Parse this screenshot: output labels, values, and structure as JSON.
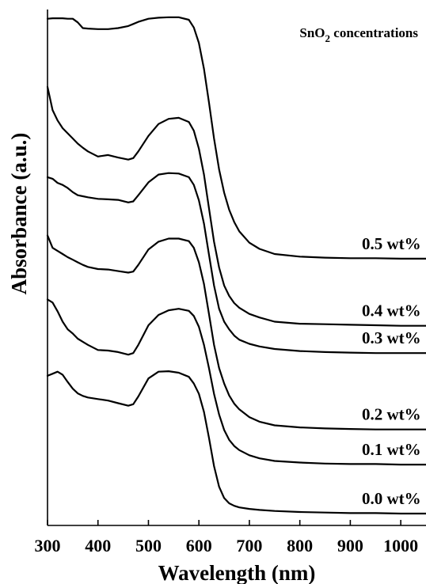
{
  "chart_data": {
    "type": "line",
    "title": "",
    "legend_title": {
      "prefix": "SnO",
      "subscript": "2",
      "suffix": " concentrations"
    },
    "legend_placement": "top-right",
    "xlabel": "Wavelength (nm)",
    "ylabel": "Absorbance (a.u.)",
    "xlim": [
      300,
      1050
    ],
    "ylim": [
      0,
      100
    ],
    "grid": false,
    "line_color": "#000000",
    "x_ticks": [
      300,
      400,
      500,
      600,
      700,
      800,
      900,
      1000
    ],
    "x_tick_labels": [
      "300",
      "400",
      "500",
      "600",
      "700",
      "800",
      "900",
      "1000"
    ],
    "y_ticks_visible": false,
    "x": [
      300,
      310,
      320,
      330,
      340,
      350,
      360,
      370,
      380,
      400,
      420,
      440,
      460,
      470,
      480,
      500,
      520,
      540,
      560,
      580,
      590,
      600,
      610,
      620,
      630,
      640,
      650,
      660,
      670,
      680,
      700,
      720,
      750,
      800,
      850,
      900,
      950,
      1000,
      1050
    ],
    "series": [
      {
        "name": "0.5 wt%",
        "values": [
          98.2,
          98.3,
          98.3,
          98.3,
          98.2,
          98.2,
          97.5,
          96.4,
          96.3,
          96.2,
          96.2,
          96.4,
          96.8,
          97.2,
          97.6,
          98.2,
          98.4,
          98.5,
          98.5,
          98.0,
          96.5,
          93.5,
          88.5,
          82.0,
          75.0,
          69.0,
          64.5,
          61.2,
          58.8,
          57.0,
          54.8,
          53.6,
          52.6,
          52.1,
          51.9,
          51.8,
          51.8,
          51.7,
          51.7
        ]
      },
      {
        "name": "0.4 wt%",
        "values": [
          85.0,
          80.5,
          78.5,
          77.0,
          76.0,
          75.0,
          74.0,
          73.2,
          72.5,
          71.5,
          71.8,
          71.3,
          70.9,
          71.2,
          72.5,
          75.5,
          77.8,
          78.8,
          79.0,
          78.2,
          76.5,
          73.0,
          68.0,
          61.5,
          55.0,
          50.0,
          46.5,
          44.5,
          43.1,
          42.2,
          41.0,
          40.3,
          39.5,
          39.1,
          39.0,
          38.9,
          38.8,
          38.7,
          38.7
        ]
      },
      {
        "name": "0.3 wt%",
        "values": [
          67.5,
          67.2,
          66.4,
          66.0,
          65.4,
          64.6,
          64.0,
          63.8,
          63.6,
          63.3,
          63.2,
          63.1,
          62.6,
          62.8,
          64.0,
          66.5,
          68.0,
          68.3,
          68.2,
          67.5,
          66.0,
          63.0,
          58.5,
          52.5,
          46.5,
          42.0,
          39.5,
          38.0,
          36.8,
          36.0,
          35.2,
          34.7,
          34.2,
          33.8,
          33.6,
          33.5,
          33.4,
          33.4,
          33.4
        ]
      },
      {
        "name": "0.2 wt%",
        "values": [
          56.2,
          53.8,
          53.2,
          52.6,
          52.0,
          51.5,
          51.0,
          50.5,
          50.1,
          49.7,
          49.6,
          49.3,
          49.0,
          49.2,
          50.5,
          53.5,
          55.0,
          55.6,
          55.6,
          55.1,
          53.8,
          51.0,
          46.8,
          41.0,
          35.0,
          30.5,
          27.5,
          25.2,
          23.6,
          22.5,
          21.0,
          20.1,
          19.4,
          19.0,
          18.8,
          18.7,
          18.6,
          18.6,
          18.6
        ]
      },
      {
        "name": "0.1 wt%",
        "values": [
          43.8,
          43.2,
          41.5,
          39.5,
          38.0,
          37.2,
          36.2,
          35.6,
          35.0,
          34.0,
          33.9,
          33.6,
          33.1,
          33.4,
          35.0,
          38.8,
          40.8,
          41.7,
          42.0,
          41.6,
          40.6,
          38.5,
          35.0,
          30.5,
          25.5,
          21.5,
          18.5,
          16.6,
          15.4,
          14.6,
          13.6,
          13.0,
          12.5,
          12.2,
          12.0,
          11.9,
          11.9,
          11.8,
          11.8
        ]
      },
      {
        "name": "0.0 wt%",
        "values": [
          29.0,
          29.4,
          29.8,
          29.2,
          27.8,
          26.5,
          25.6,
          25.1,
          24.8,
          24.5,
          24.2,
          23.7,
          23.2,
          23.5,
          25.0,
          28.5,
          29.8,
          29.9,
          29.6,
          28.8,
          27.5,
          25.5,
          22.0,
          17.0,
          11.5,
          7.5,
          5.3,
          4.3,
          3.8,
          3.5,
          3.2,
          3.0,
          2.8,
          2.6,
          2.5,
          2.4,
          2.4,
          2.3,
          2.3
        ]
      }
    ]
  }
}
